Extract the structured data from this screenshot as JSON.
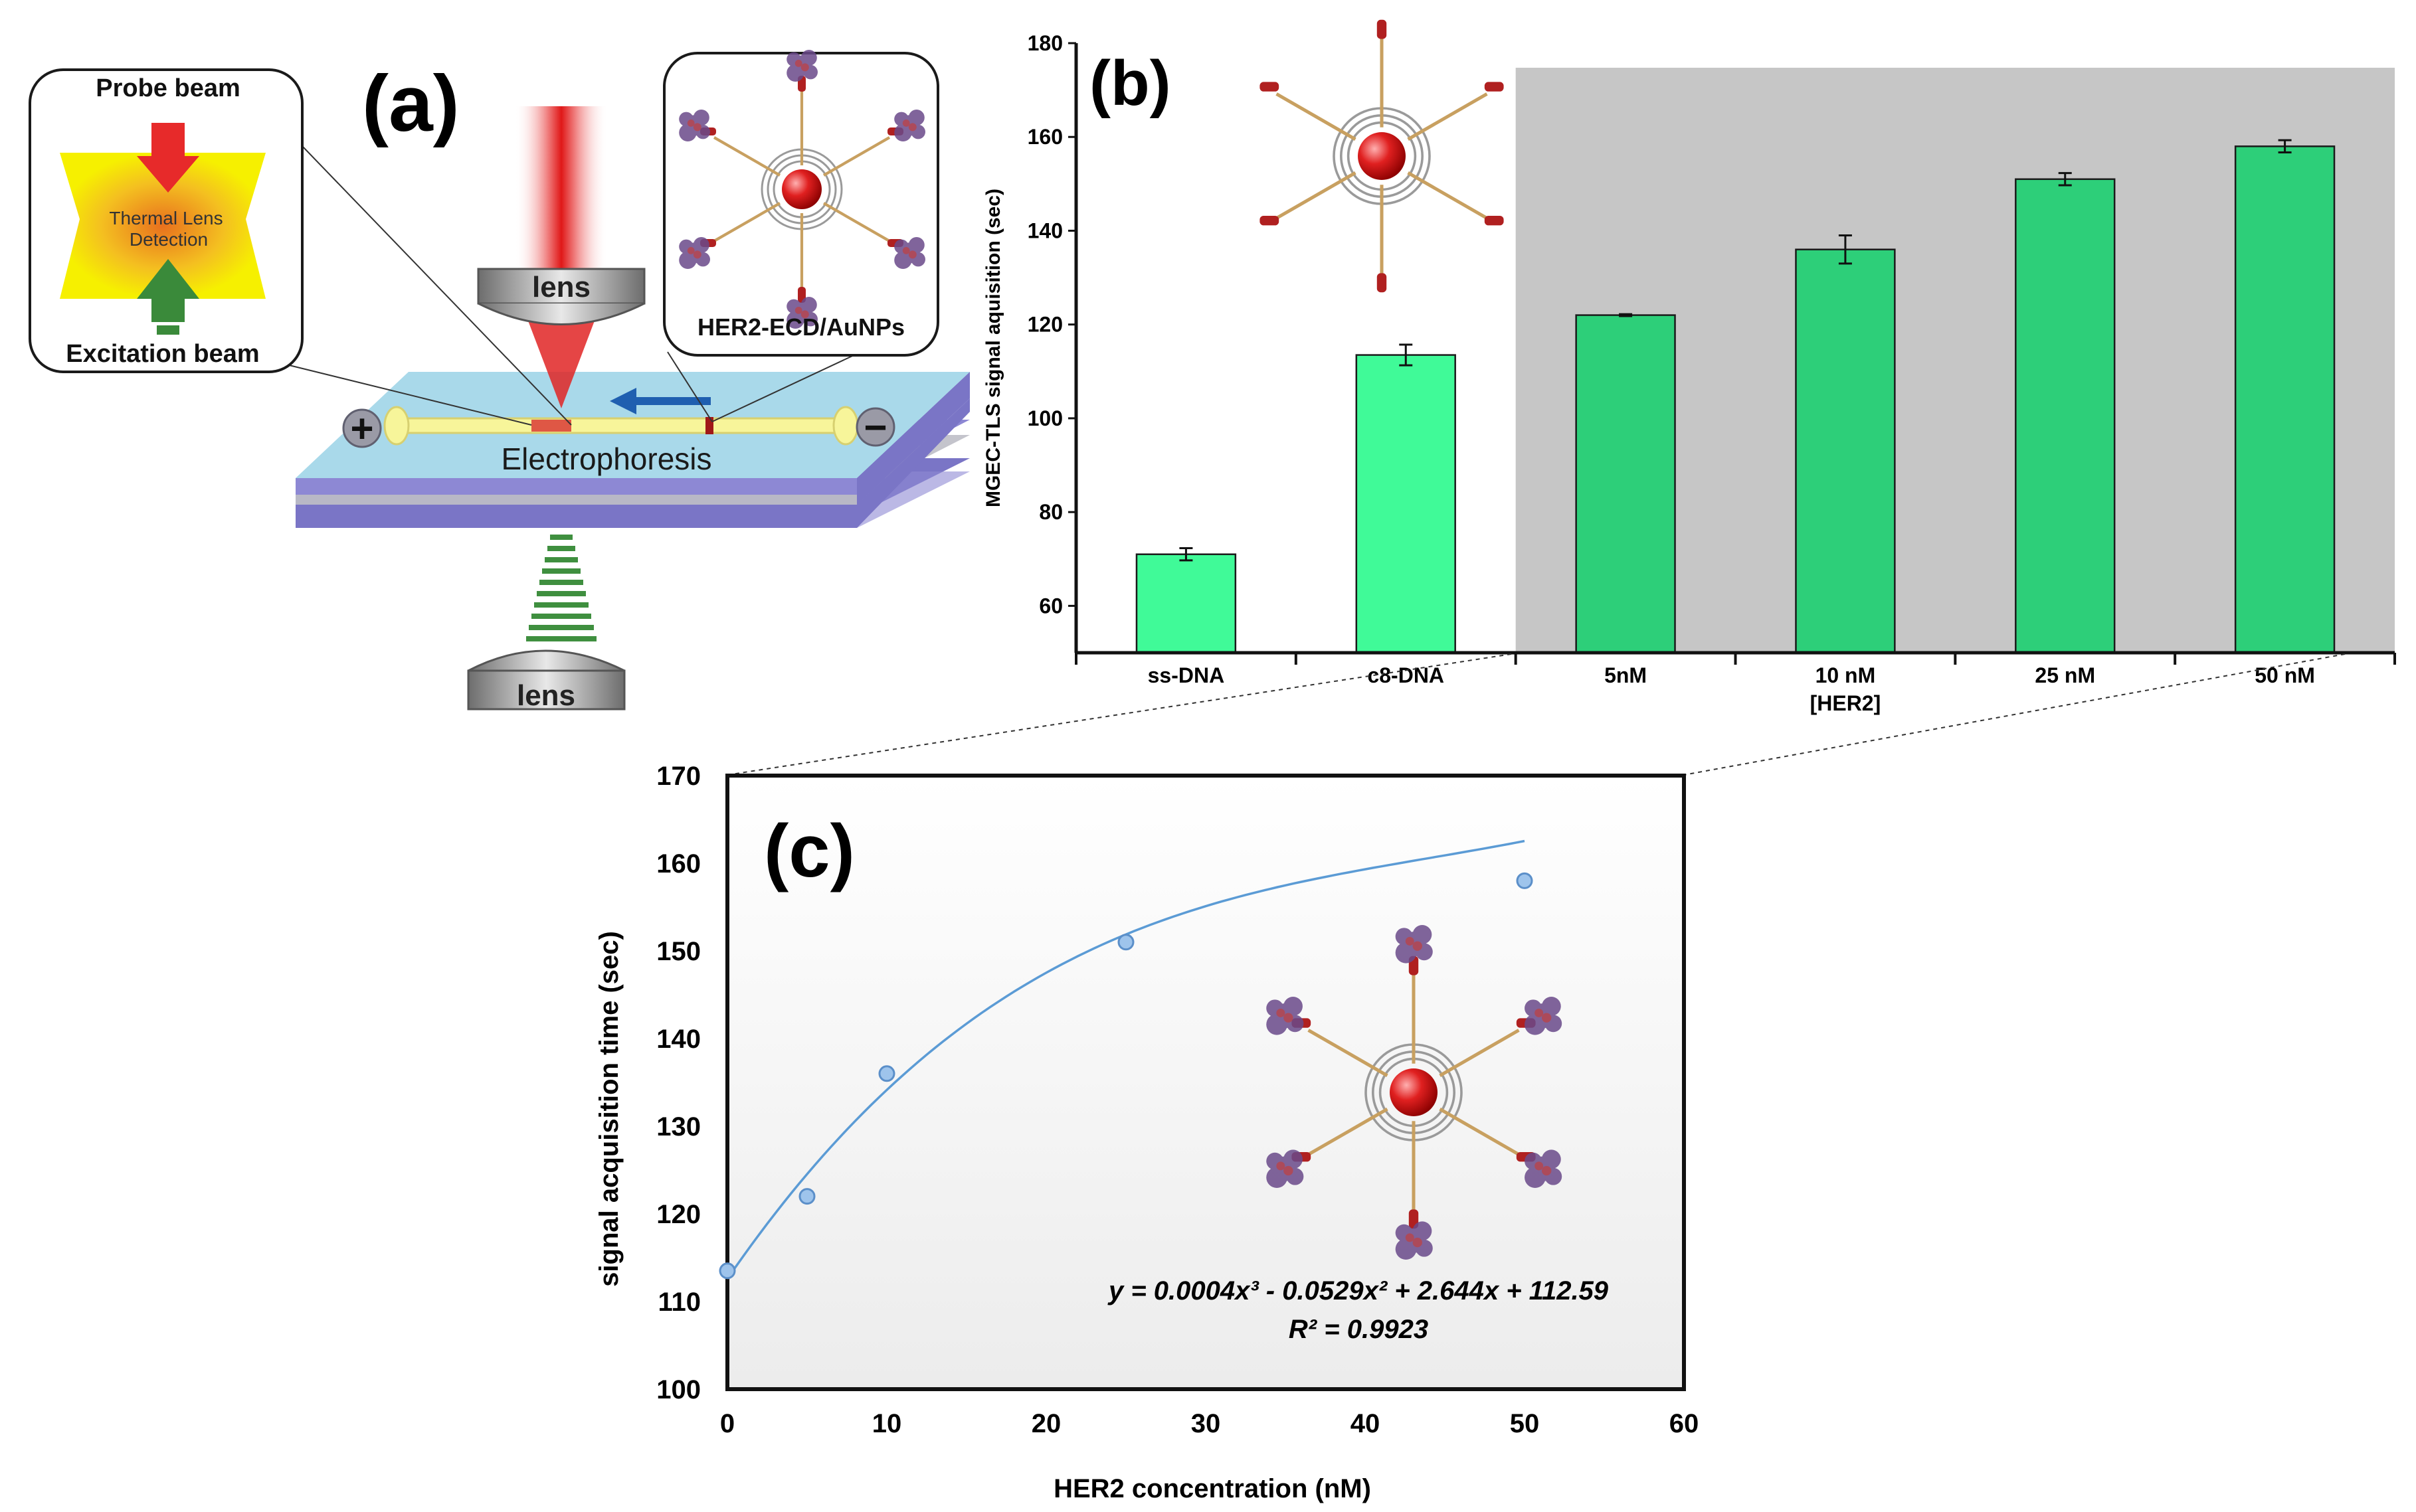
{
  "panel_a": {
    "label": "(a)",
    "probe_beam": "Probe beam",
    "excitation_beam": "Excitation beam",
    "thermal_lens_line1": "Thermal Lens",
    "thermal_lens_line2": "Detection",
    "lens_top": "lens",
    "lens_bottom": "lens",
    "nanoparticle_label": "HER2-ECD/AuNPs",
    "electrophoresis": "Electrophoresis",
    "plus": "+",
    "minus": "−"
  },
  "panel_b_label": "(b)",
  "panel_c_label": "(c)",
  "chart_data": [
    {
      "type": "bar",
      "title": "",
      "categories": [
        "ss-DNA",
        "c8-DNA",
        "5nM",
        "10 nM",
        "25 nM",
        "50 nM"
      ],
      "values": [
        71,
        113.5,
        122,
        136,
        151,
        158
      ],
      "errors": [
        1.3,
        2.2,
        0.2,
        3.0,
        1.3,
        1.3
      ],
      "highlight_from_index": 2,
      "xlabel": "[HER2]",
      "ylabel": "MGEC-TLS signal aquisition (sec)",
      "yticks": [
        "60",
        "80",
        "100",
        "120",
        "140",
        "160",
        "180"
      ],
      "ylim": [
        50,
        180
      ],
      "colors": {
        "control_bar": "#40fa98",
        "her2_bar": "#2dcf79",
        "highlight_bg": "#c6c6c6"
      }
    },
    {
      "type": "scatter",
      "x": [
        0,
        5,
        10,
        25,
        50
      ],
      "y": [
        113.5,
        122,
        136,
        151,
        158
      ],
      "fit": {
        "type": "polynomial-3",
        "coefficients": [
          0.0004,
          -0.0529,
          2.644,
          112.59
        ]
      },
      "equation": "y = 0.0004x³ - 0.0529x² + 2.644x + 112.59",
      "r_squared": "R² = 0.9923",
      "xlabel": "HER2 concentration (nM)",
      "ylabel": "signal acquisition time (sec)",
      "xticks": [
        "0",
        "10",
        "20",
        "30",
        "40",
        "50",
        "60"
      ],
      "yticks": [
        "100",
        "110",
        "120",
        "130",
        "140",
        "150",
        "160",
        "170"
      ],
      "xlim": [
        0,
        60
      ],
      "ylim": [
        100,
        170
      ],
      "colors": {
        "point": "#9ec4ec",
        "point_edge": "#5b8fc9",
        "fit_line": "#5b9bd5"
      }
    }
  ]
}
